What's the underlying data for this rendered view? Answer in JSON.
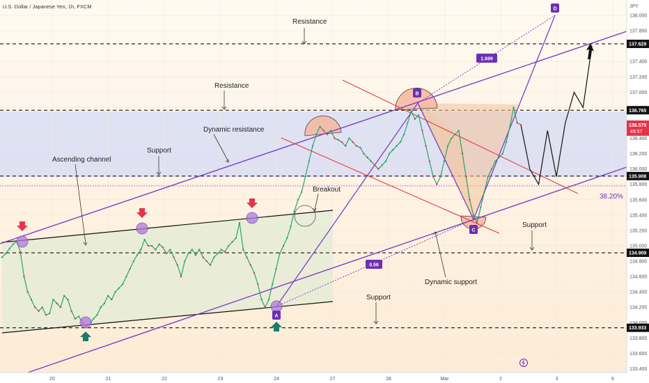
{
  "chart_data": {
    "type": "line",
    "title": "U.S. Dollar / Japanese Yen, 1h, FXCM",
    "currency": "JPY",
    "x_ticks": [
      "20",
      "21",
      "22",
      "23",
      "24",
      "27",
      "28",
      "Mar",
      "2",
      "3",
      "6"
    ],
    "y_ticks": [
      "138.000",
      "137.800",
      "137.400",
      "137.200",
      "137.000",
      "136.800",
      "136.400",
      "136.200",
      "136.000",
      "135.800",
      "135.600",
      "135.400",
      "135.200",
      "135.000",
      "134.800",
      "134.600",
      "134.400",
      "134.200",
      "134.000",
      "133.800",
      "133.600",
      "133.400"
    ],
    "ylim": [
      133.35,
      138.2
    ],
    "levels": [
      {
        "label": "137.629",
        "value": 137.629
      },
      {
        "label": "136.765",
        "value": 136.765
      },
      {
        "label": "135.908",
        "value": 135.908
      },
      {
        "label": "134.909",
        "value": 134.909
      },
      {
        "label": "133.933",
        "value": 133.933
      }
    ],
    "current_price": {
      "label": "136.575",
      "value": 136.575,
      "countdown": "49:57"
    },
    "annotations": [
      "Resistance",
      "Resistance",
      "Dynamic resistance",
      "Support",
      "Ascending channel",
      "Breakout",
      "Support",
      "Dynamic support",
      "Support"
    ],
    "pattern_points": [
      "A",
      "B",
      "C",
      "D"
    ],
    "fib_ratios": [
      "1.699",
      "0.59"
    ],
    "fib_level": "38.20%",
    "series": [
      {
        "values": [
          134.85,
          134.9,
          134.96,
          135.02,
          135.06,
          134.92,
          134.6,
          134.4,
          134.3,
          134.2,
          134.15,
          134.2,
          134.1,
          134.12,
          134.3,
          134.25,
          134.2,
          134.35,
          134.3,
          134.15,
          134.05,
          134.08,
          134.0,
          133.95,
          133.98,
          134.05,
          134.1,
          134.2,
          134.25,
          134.35,
          134.3,
          134.4,
          134.45,
          134.5,
          134.6,
          134.7,
          134.8,
          134.88,
          134.95,
          135.08,
          135.0,
          135.0,
          134.95,
          135.02,
          134.98,
          134.9,
          134.95,
          134.85,
          134.75,
          134.6,
          134.8,
          134.9,
          134.95,
          134.88,
          134.95,
          134.85,
          134.8,
          134.75,
          134.85,
          134.9,
          134.95,
          134.92,
          135.0,
          135.05,
          135.1,
          135.3,
          134.95,
          134.85,
          134.75,
          134.65,
          134.5,
          134.3,
          134.2,
          134.3,
          134.5,
          134.7,
          134.9,
          135.0,
          135.1,
          135.25,
          135.45,
          135.6,
          135.7,
          135.9,
          136.1,
          136.3,
          136.45,
          136.55,
          136.5,
          136.45,
          136.5,
          136.4,
          136.38,
          136.35,
          136.3,
          136.4,
          136.35,
          136.3,
          136.28,
          136.2,
          136.15,
          136.1,
          136.05,
          136.0,
          136.05,
          136.1,
          136.2,
          136.25,
          136.3,
          136.35,
          136.45,
          136.6,
          136.75,
          136.65,
          136.7,
          136.5,
          136.3,
          136.1,
          135.9,
          135.8,
          135.9,
          136.1,
          136.3,
          136.4,
          136.45,
          136.5,
          136.2,
          135.9,
          135.6,
          135.4,
          135.3,
          135.5,
          135.7,
          135.9,
          136.0,
          136.1,
          136.15,
          136.2,
          136.35,
          136.55,
          136.8,
          136.6,
          136.575
        ]
      },
      {
        "name": "projection",
        "values": [
          136.575,
          136.0,
          135.8,
          136.5,
          135.9,
          136.6,
          137.0,
          136.8,
          137.6
        ]
      }
    ]
  }
}
